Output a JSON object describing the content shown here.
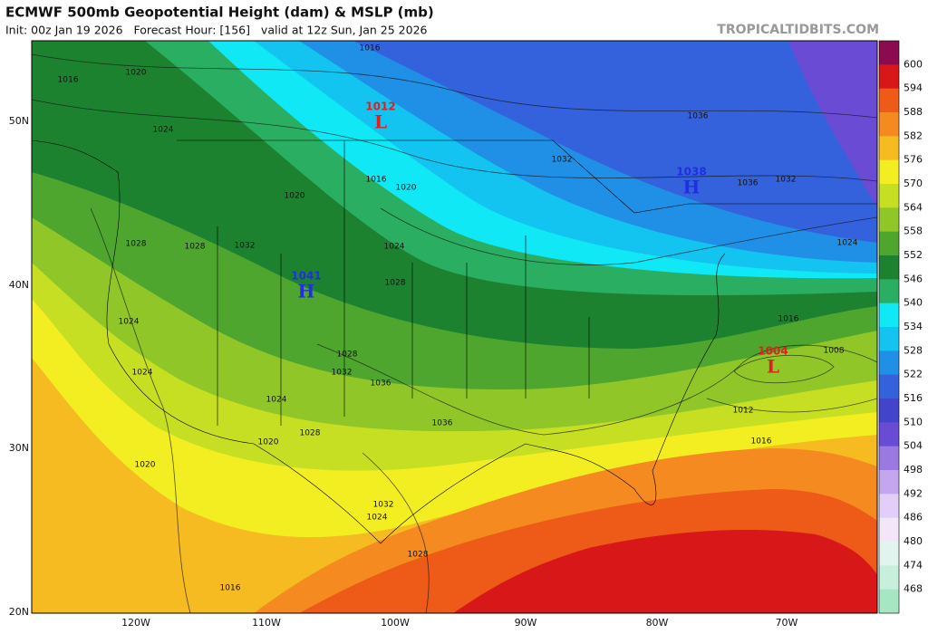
{
  "header": {
    "title": "ECMWF 500mb Geopotential Height (dam) & MSLP (mb)",
    "subtitle": "Init: 00z Jan 19 2026   Forecast Hour: [156]   valid at 12z Sun, Jan 25 2026",
    "watermark": "TROPICALTIDBITS.COM"
  },
  "map": {
    "lat_labels": [
      "50N",
      "40N",
      "30N",
      "20N"
    ],
    "lon_labels": [
      "120W",
      "110W",
      "100W",
      "90W",
      "80W",
      "70W"
    ],
    "pressure_centers": [
      {
        "type": "L",
        "value": 1012
      },
      {
        "type": "H",
        "value": 1038
      },
      {
        "type": "H",
        "value": 1041
      },
      {
        "type": "L",
        "value": 1004
      }
    ],
    "isobar_labels": [
      1016,
      1020,
      1016,
      1024,
      1032,
      1036,
      1036,
      1032,
      1024,
      1016,
      1020,
      1020,
      1024,
      1028,
      1016,
      1008,
      1012,
      1016,
      1036,
      1036,
      1032,
      1028,
      1024,
      1020,
      1028,
      1024,
      1024,
      1020,
      1016,
      1032,
      1024,
      1028,
      1028,
      1028,
      1032
    ]
  },
  "colorbar": {
    "labels": [
      600,
      594,
      588,
      582,
      576,
      570,
      564,
      558,
      552,
      546,
      540,
      534,
      528,
      522,
      516,
      510,
      504,
      498,
      492,
      486,
      480,
      474,
      468
    ],
    "colors": [
      "#8b0a50",
      "#d81818",
      "#ee5a18",
      "#f58a20",
      "#f5bb20",
      "#f2ee22",
      "#c6df22",
      "#90c628",
      "#4ea62e",
      "#1c8230",
      "#2aaf62",
      "#10e8f5",
      "#14c4f0",
      "#2090e6",
      "#3462dc",
      "#4244cc",
      "#6a4cd4",
      "#9a7ae0",
      "#c4a6ee",
      "#e2cef8",
      "#f2e6f8",
      "#e2f4ee",
      "#c6f0dc",
      "#a6e6c2"
    ]
  }
}
